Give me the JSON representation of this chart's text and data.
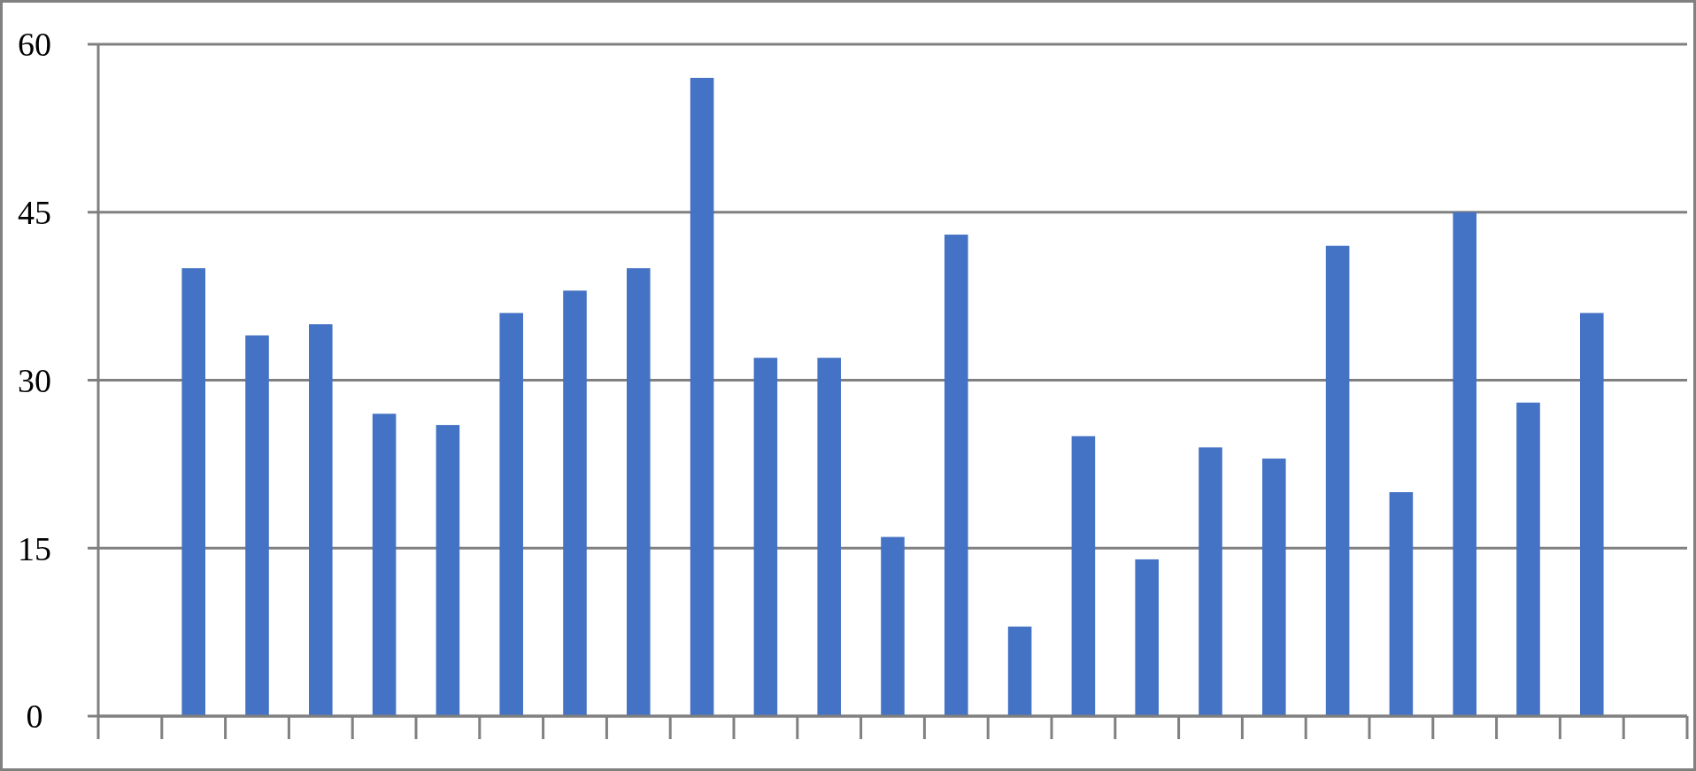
{
  "chart_data": {
    "type": "bar",
    "categories": [
      null,
      null,
      null,
      null,
      null,
      null,
      null,
      null,
      null,
      null,
      null,
      null,
      null,
      null,
      null,
      null,
      null,
      null,
      null,
      null,
      null,
      null,
      null,
      null,
      null
    ],
    "values": [
      null,
      40,
      34,
      35,
      27,
      26,
      36,
      38,
      40,
      57,
      32,
      32,
      16,
      43,
      8,
      25,
      14,
      24,
      23,
      42,
      20,
      45,
      28,
      36,
      null
    ],
    "color": "#4472c4",
    "ylim": [
      0,
      60
    ],
    "yticks": [
      0,
      15,
      30,
      45,
      60
    ],
    "grid": "y"
  }
}
